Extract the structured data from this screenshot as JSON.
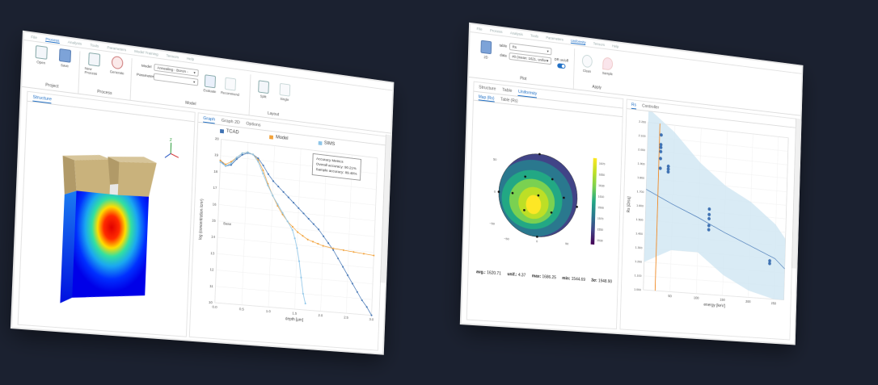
{
  "left_window": {
    "menu": [
      "File",
      "Process",
      "Analysis",
      "Tools",
      "Parameters",
      "Model Training",
      "Tensors",
      "Help"
    ],
    "menu_active_index": 1,
    "ribbon": {
      "project": {
        "label": "Project",
        "open": "Open",
        "save": "Save"
      },
      "process": {
        "label": "Process",
        "new_process": "New Process",
        "generate": "Generate"
      },
      "model": {
        "label": "Model",
        "model_field_label": "Model",
        "model_value": "Annealing - Boron -",
        "parameter_field_label": "Parameter",
        "parameter_value": "",
        "evaluate": "Evaluate",
        "recommend": "Recommend"
      },
      "layout": {
        "label": "Layout",
        "split": "Split",
        "single": "Single"
      }
    },
    "structure_tab": "Structure",
    "graph_tabs": [
      "Graph",
      "Graph 2D",
      "Options"
    ],
    "axis_z": "z",
    "chart_data": {
      "type": "line",
      "series": [
        {
          "name": "TCAD",
          "color": "#3f72b3",
          "x": [
            0.0,
            0.1,
            0.2,
            0.3,
            0.4,
            0.5,
            0.6,
            0.7,
            0.8,
            0.9,
            1.0,
            1.1,
            1.2,
            1.3,
            1.4,
            1.5,
            1.6,
            1.7,
            1.8,
            1.9,
            2.0,
            2.1,
            2.2,
            2.3,
            2.4,
            2.5,
            2.6,
            2.7,
            2.8,
            2.9,
            3.0
          ],
          "y": [
            18.7,
            18.4,
            18.5,
            18.9,
            19.2,
            19.35,
            19.3,
            19.1,
            18.7,
            18.2,
            17.8,
            17.5,
            17.2,
            16.9,
            16.6,
            16.3,
            16.0,
            15.7,
            15.4,
            15.1,
            14.7,
            14.3,
            13.9,
            13.4,
            12.9,
            12.4,
            11.9,
            11.4,
            10.9,
            10.5,
            10.0
          ]
        },
        {
          "name": "Model",
          "color": "#f2a23a",
          "x": [
            0.0,
            0.1,
            0.2,
            0.3,
            0.4,
            0.5,
            0.6,
            0.7,
            0.8,
            0.9,
            1.0,
            1.1,
            1.2,
            1.3,
            1.4,
            1.5,
            1.6,
            1.7,
            1.8,
            1.9,
            2.0,
            2.2,
            2.4,
            2.6,
            2.8,
            3.0
          ],
          "y": [
            18.7,
            18.5,
            18.7,
            19.0,
            19.3,
            19.4,
            19.3,
            19.0,
            18.4,
            17.6,
            16.9,
            16.3,
            15.8,
            15.4,
            15.1,
            14.8,
            14.6,
            14.4,
            14.3,
            14.2,
            14.1,
            14.0,
            13.95,
            13.9,
            13.85,
            13.8
          ]
        },
        {
          "name": "SIMS",
          "color": "#8ec5e8",
          "x": [
            0.0,
            0.1,
            0.2,
            0.3,
            0.4,
            0.5,
            0.6,
            0.7,
            0.8,
            0.9,
            1.0,
            1.1,
            1.2,
            1.3,
            1.4,
            1.45,
            1.5,
            1.55,
            1.6,
            1.65,
            1.7
          ],
          "y": [
            18.6,
            18.4,
            18.6,
            19.0,
            19.3,
            19.4,
            19.3,
            18.9,
            18.2,
            17.5,
            16.9,
            16.4,
            15.9,
            15.4,
            14.9,
            14.4,
            13.8,
            13.0,
            12.0,
            11.0,
            10.4
          ]
        }
      ],
      "xlim": [
        0,
        3
      ],
      "ylim": [
        10,
        20
      ],
      "xticks": [
        "0.0",
        "0.5",
        "1.0",
        "1.5",
        "2.0",
        "2.5",
        "3.0"
      ],
      "yticks": [
        "10",
        "11",
        "12",
        "13",
        "14",
        "15",
        "16",
        "17",
        "18",
        "19",
        "20"
      ],
      "ylabel": "log (concentration /cm³)",
      "xlabel": "depth [µm]",
      "annotation": "Base",
      "legend_position": "top",
      "grid": true
    },
    "accuracy": {
      "title": "Accuracy Metrics",
      "overall": "Overall accuracy: 90.21%",
      "sample": "Sample accuracy: 89.48%"
    }
  },
  "right_window": {
    "menu": [
      "File",
      "Process",
      "Analysis",
      "Tools",
      "Parameters",
      "Uniformity",
      "Tensors",
      "Help"
    ],
    "menu_active_index": 5,
    "ribbon": {
      "plot": {
        "label": "Plot",
        "view_2d": "2D",
        "table_label": "table",
        "table_value": "Rs",
        "data_label": "data",
        "data_value": "#0 (mean: 1621, uniformity",
        "dr_label": "DR on/off"
      },
      "apply": {
        "label": "Apply",
        "clean": "Clean",
        "Sample": "Sample"
      }
    },
    "main_tabs": [
      "Structure",
      "Table",
      "Uniformity"
    ],
    "sub_tabs": [
      "Map (Rs)",
      "Table (Rs)"
    ],
    "right_tabs": [
      "Rs",
      "Controller"
    ],
    "wafer_map": {
      "colorbar_ticks": [
        "1670",
        "1650",
        "1630",
        "1610",
        "1590",
        "1570",
        "1550",
        "1530"
      ],
      "axis_ticks": [
        "50",
        "0",
        "−50"
      ],
      "x_ticks": [
        "−50",
        "0",
        "50"
      ],
      "stats": {
        "avg_label": "avg.:",
        "avg": "1620.71",
        "unif_label": "unif.:",
        "unif": "4.37",
        "max_label": "max:",
        "max": "1686.25",
        "min_label": "min:",
        "min": "1544.69",
        "sigma_label": "3σ:",
        "sigma": "1948.90"
      }
    },
    "chart_data": {
      "type": "scatter",
      "points_x": [
        25,
        25,
        25,
        25,
        25,
        25,
        40,
        40,
        40,
        120,
        120,
        120,
        120,
        120,
        240,
        240
      ],
      "points_y": [
        2.12,
        2.05,
        2.03,
        2.0,
        1.95,
        1.88,
        1.9,
        1.88,
        1.86,
        1.62,
        1.58,
        1.55,
        1.5,
        1.47,
        1.28,
        1.26
      ],
      "fit_x": [
        0,
        50,
        100,
        150,
        200,
        250,
        270
      ],
      "fit_y": [
        1.72,
        1.63,
        1.55,
        1.46,
        1.38,
        1.3,
        1.23
      ],
      "band_upper": [
        2.3,
        2.15,
        1.95,
        1.8,
        1.7,
        1.55,
        1.45
      ],
      "band_lower": [
        1.2,
        1.3,
        1.3,
        1.15,
        1.05,
        1.0,
        1.0
      ],
      "vline_x": 22,
      "xlim": [
        0,
        270
      ],
      "ylim": [
        1.0,
        2.2
      ],
      "xticks": [
        "50",
        "100",
        "150",
        "200",
        "250"
      ],
      "yticks": [
        "2.200",
        "2.100",
        "2.000",
        "1.900",
        "1.800",
        "1.700",
        "1.600",
        "1.500",
        "1.400",
        "1.300",
        "1.200",
        "1.100",
        "1.000"
      ],
      "xlabel": "energy [keV]",
      "ylabel": "Rs [Ω/sq]",
      "grid": true
    }
  },
  "colors": {
    "accent": "#1f6fc5",
    "background": "#1b2130",
    "tcad": "#3f72b3",
    "model": "#f2a23a",
    "sims": "#8ec5e8"
  }
}
